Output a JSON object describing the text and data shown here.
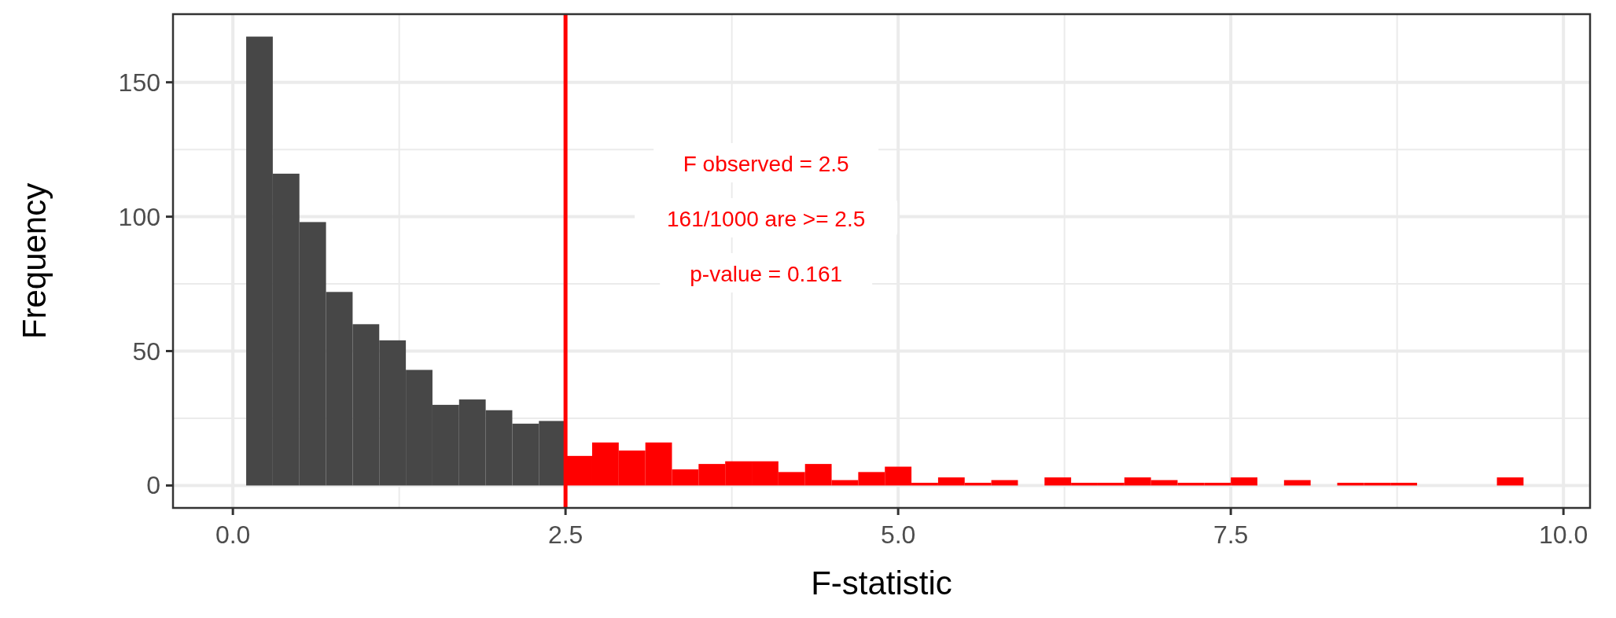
{
  "chart_data": {
    "type": "histogram",
    "xlabel": "F-statistic",
    "ylabel": "Frequency",
    "bins": [
      0.1,
      0.3,
      0.5,
      0.7,
      0.9,
      1.1,
      1.3,
      1.5,
      1.7,
      1.9,
      2.1,
      2.3,
      2.5,
      2.7,
      2.9,
      3.1,
      3.3,
      3.5,
      3.7,
      3.9,
      4.1,
      4.3,
      4.5,
      4.7,
      4.9,
      5.1,
      5.3,
      5.5,
      5.7,
      5.9,
      6.1,
      6.3,
      6.5,
      6.7,
      6.9,
      7.1,
      7.3,
      7.5,
      7.7,
      7.9,
      8.1,
      8.3,
      8.5,
      8.7,
      8.9,
      9.1,
      9.3,
      9.5,
      9.7
    ],
    "values": [
      167,
      116,
      98,
      72,
      60,
      54,
      43,
      30,
      32,
      28,
      23,
      24,
      11,
      16,
      13,
      16,
      6,
      8,
      9,
      9,
      5,
      8,
      2,
      5,
      7,
      1,
      3,
      1,
      2,
      0,
      3,
      1,
      1,
      3,
      2,
      1,
      1,
      3,
      0,
      2,
      0,
      1,
      1,
      1,
      0,
      0,
      0,
      3
    ],
    "colors": [
      "#474747",
      "#474747",
      "#474747",
      "#474747",
      "#474747",
      "#474747",
      "#474747",
      "#474747",
      "#474747",
      "#474747",
      "#474747",
      "#474747",
      "#ff0000",
      "#ff0000",
      "#ff0000",
      "#ff0000",
      "#ff0000",
      "#ff0000",
      "#ff0000",
      "#ff0000",
      "#ff0000",
      "#ff0000",
      "#ff0000",
      "#ff0000",
      "#ff0000",
      "#ff0000",
      "#ff0000",
      "#ff0000",
      "#ff0000",
      "#ff0000",
      "#ff0000",
      "#ff0000",
      "#ff0000",
      "#ff0000",
      "#ff0000",
      "#ff0000",
      "#ff0000",
      "#ff0000",
      "#ff0000",
      "#ff0000",
      "#ff0000",
      "#ff0000",
      "#ff0000",
      "#ff0000",
      "#ff0000",
      "#ff0000",
      "#ff0000",
      "#ff0000"
    ],
    "xlim": [
      -0.45,
      10.2
    ],
    "xticks": [
      {
        "value": 0,
        "label": "0.0"
      },
      2.5,
      {
        "value": 5,
        "label": "5.0"
      },
      7.5,
      {
        "value": 10,
        "label": "10.0"
      }
    ],
    "ylim": [
      -8.35,
      175.35
    ],
    "yticks": [
      0,
      50,
      100,
      150
    ],
    "grid": true,
    "ref_lines": [
      {
        "axis": "x",
        "value": 2.5,
        "color": "#ff0000"
      }
    ],
    "annotations": [
      "F observed = 2.5",
      "161/1000 are >= 2.5",
      "p-value = 0.161"
    ]
  }
}
